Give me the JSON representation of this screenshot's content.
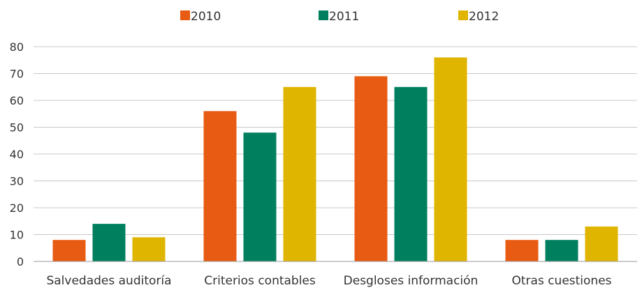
{
  "chart_data": {
    "type": "bar",
    "categories": [
      "Salvedades auditoría",
      "Criterios contables",
      "Desgloses información",
      "Otras cuestiones"
    ],
    "series": [
      {
        "name": "2010",
        "color": "#E85B12",
        "values": [
          8,
          56,
          69,
          8
        ]
      },
      {
        "name": "2011",
        "color": "#007F5F",
        "values": [
          14,
          48,
          65,
          8
        ]
      },
      {
        "name": "2012",
        "color": "#E0B500",
        "values": [
          9,
          65,
          76,
          13
        ]
      }
    ],
    "ylim": [
      0,
      80
    ],
    "yticks": [
      0,
      10,
      20,
      30,
      40,
      50,
      60,
      70,
      80
    ],
    "grid": true,
    "legend_position": "top-center",
    "colors": {
      "grid": "#C8C8C8",
      "axis": "#9A9A9A",
      "text": "#333333"
    }
  }
}
